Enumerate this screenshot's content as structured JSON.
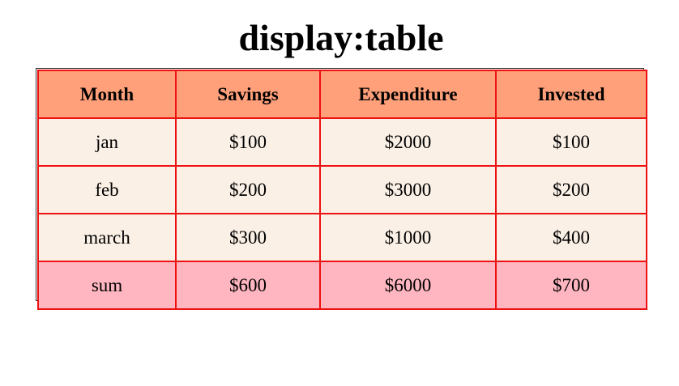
{
  "page": {
    "title": "display:table"
  },
  "table": {
    "headers": [
      "Month",
      "Savings",
      "Expenditure",
      "Invested"
    ],
    "rows": [
      [
        "jan",
        "$100",
        "$2000",
        "$100"
      ],
      [
        "feb",
        "$200",
        "$3000",
        "$200"
      ],
      [
        "march",
        "$300",
        "$1000",
        "$400"
      ]
    ],
    "sum_row": [
      "sum",
      "$600",
      "$6000",
      "$700"
    ]
  },
  "colors": {
    "header_bg": "#ffa07a",
    "row_bg": "#faf0e6",
    "sum_bg": "#ffb6c1",
    "border": "#ee1111"
  }
}
